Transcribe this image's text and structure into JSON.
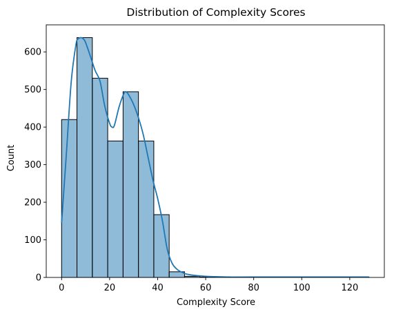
{
  "chart_data": {
    "type": "bar",
    "title": "Distribution of Complexity Scores",
    "xlabel": "Complexity Score",
    "ylabel": "Count",
    "xlim": [
      -6.4,
      134.4
    ],
    "ylim": [
      0,
      672
    ],
    "xticks": [
      0,
      20,
      40,
      60,
      80,
      100,
      120
    ],
    "yticks": [
      0,
      100,
      200,
      300,
      400,
      500,
      600
    ],
    "bins": [
      {
        "x0": 0.0,
        "x1": 6.4,
        "count": 420
      },
      {
        "x0": 6.4,
        "x1": 12.8,
        "count": 638
      },
      {
        "x0": 12.8,
        "x1": 19.2,
        "count": 530
      },
      {
        "x0": 19.2,
        "x1": 25.6,
        "count": 363
      },
      {
        "x0": 25.6,
        "x1": 32.0,
        "count": 494
      },
      {
        "x0": 32.0,
        "x1": 38.4,
        "count": 363
      },
      {
        "x0": 38.4,
        "x1": 44.8,
        "count": 167
      },
      {
        "x0": 44.8,
        "x1": 51.2,
        "count": 15
      },
      {
        "x0": 51.2,
        "x1": 57.6,
        "count": 3
      },
      {
        "x0": 57.6,
        "x1": 64.0,
        "count": 1
      },
      {
        "x0": 64.0,
        "x1": 70.4,
        "count": 0
      },
      {
        "x0": 70.4,
        "x1": 76.8,
        "count": 0
      },
      {
        "x0": 76.8,
        "x1": 83.2,
        "count": 0
      },
      {
        "x0": 83.2,
        "x1": 89.6,
        "count": 0
      },
      {
        "x0": 89.6,
        "x1": 96.0,
        "count": 0
      },
      {
        "x0": 96.0,
        "x1": 102.4,
        "count": 0
      },
      {
        "x0": 102.4,
        "x1": 108.8,
        "count": 0
      },
      {
        "x0": 108.8,
        "x1": 115.2,
        "count": 0
      },
      {
        "x0": 115.2,
        "x1": 121.6,
        "count": 0
      },
      {
        "x0": 121.6,
        "x1": 128.0,
        "count": 1
      }
    ],
    "kde": {
      "x": [
        0,
        2,
        4,
        6,
        7,
        8,
        9,
        10,
        12,
        14,
        16,
        18,
        20,
        21,
        22,
        24,
        26,
        27,
        28,
        30,
        32,
        34,
        36,
        38,
        40,
        42,
        44,
        46,
        48,
        50,
        52,
        56,
        60,
        64,
        70,
        80,
        100,
        120,
        128
      ],
      "y": [
        145,
        330,
        520,
        620,
        635,
        638,
        635,
        625,
        588,
        550,
        522,
        455,
        410,
        400,
        405,
        455,
        490,
        493,
        485,
        460,
        425,
        380,
        320,
        260,
        210,
        150,
        75,
        38,
        22,
        14,
        9,
        5,
        3,
        2,
        1,
        1,
        1,
        1,
        1
      ]
    },
    "colors": {
      "bar_fill": "#1f77b4",
      "bar_fill_opacity": 0.5,
      "bar_edge": "#000000",
      "kde_line": "#1f77b4"
    },
    "grid": false,
    "legend": "none"
  }
}
